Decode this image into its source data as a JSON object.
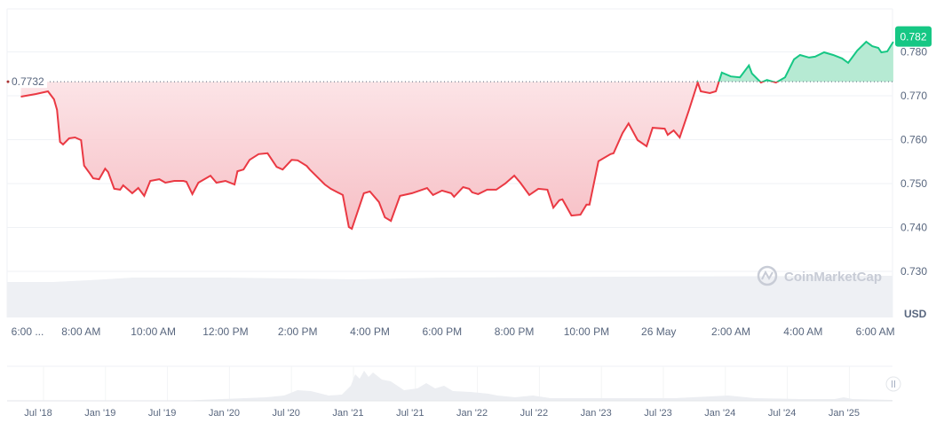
{
  "chart_data": {
    "type": "line",
    "currency_label": "USD",
    "baseline": {
      "value": 0.7732,
      "label": "0.7732"
    },
    "current_price": {
      "value": 0.782,
      "label": "0.782"
    },
    "ylim": [
      0.727,
      0.79
    ],
    "y_ticks": [
      "0.780",
      "0.770",
      "0.760",
      "0.750",
      "0.740",
      "0.730"
    ],
    "x_ticks": [
      "6:00 ...",
      "8:00 AM",
      "10:00 AM",
      "12:00 PM",
      "2:00 PM",
      "4:00 PM",
      "6:00 PM",
      "8:00 PM",
      "10:00 PM",
      "26 May",
      "2:00 AM",
      "4:00 AM",
      "6:00 AM"
    ],
    "grid": true,
    "colors": {
      "up": "#16c784",
      "down": "#ea3943",
      "up_fill": "#b6ead3",
      "down_fill": "#fbd9dc"
    },
    "watermark": "CoinMarketCap",
    "series": [
      {
        "points": [
          [
            "06:20",
            0.7698
          ],
          [
            "06:45",
            0.7704
          ],
          [
            "07:05",
            0.771
          ],
          [
            "07:15",
            0.7692
          ],
          [
            "07:20",
            0.7668
          ],
          [
            "07:25",
            0.7595
          ],
          [
            "07:30",
            0.7589
          ],
          [
            "07:40",
            0.7603
          ],
          [
            "07:50",
            0.7605
          ],
          [
            "08:00",
            0.7599
          ],
          [
            "08:05",
            0.7541
          ],
          [
            "08:15",
            0.7522
          ],
          [
            "08:20",
            0.7512
          ],
          [
            "08:30",
            0.751
          ],
          [
            "08:40",
            0.7534
          ],
          [
            "08:45",
            0.7526
          ],
          [
            "08:55",
            0.7488
          ],
          [
            "09:05",
            0.7486
          ],
          [
            "09:10",
            0.7496
          ],
          [
            "09:20",
            0.7484
          ],
          [
            "09:25",
            0.7478
          ],
          [
            "09:35",
            0.749
          ],
          [
            "09:45",
            0.7472
          ],
          [
            "09:55",
            0.7506
          ],
          [
            "10:10",
            0.751
          ],
          [
            "10:20",
            0.7502
          ],
          [
            "10:35",
            0.7506
          ],
          [
            "10:50",
            0.7506
          ],
          [
            "10:55",
            0.7504
          ],
          [
            "11:05",
            0.7476
          ],
          [
            "11:15",
            0.7502
          ],
          [
            "11:35",
            0.7518
          ],
          [
            "11:45",
            0.7502
          ],
          [
            "12:00",
            0.7506
          ],
          [
            "12:15",
            0.7498
          ],
          [
            "12:20",
            0.7528
          ],
          [
            "12:30",
            0.7532
          ],
          [
            "12:40",
            0.7554
          ],
          [
            "12:55",
            0.7567
          ],
          [
            "13:10",
            0.7569
          ],
          [
            "13:25",
            0.7538
          ],
          [
            "13:35",
            0.7532
          ],
          [
            "13:50",
            0.7554
          ],
          [
            "14:00",
            0.7553
          ],
          [
            "14:15",
            0.754
          ],
          [
            "14:20",
            0.7532
          ],
          [
            "14:45",
            0.7498
          ],
          [
            "14:55",
            0.7488
          ],
          [
            "15:15",
            0.7474
          ],
          [
            "15:25",
            0.7401
          ],
          [
            "15:30",
            0.7397
          ],
          [
            "15:50",
            0.7478
          ],
          [
            "16:00",
            0.7482
          ],
          [
            "16:15",
            0.7458
          ],
          [
            "16:25",
            0.7423
          ],
          [
            "16:35",
            0.7415
          ],
          [
            "16:50",
            0.7472
          ],
          [
            "17:10",
            0.7478
          ],
          [
            "17:35",
            0.749
          ],
          [
            "17:45",
            0.7474
          ],
          [
            "18:00",
            0.7484
          ],
          [
            "18:15",
            0.7478
          ],
          [
            "18:20",
            0.747
          ],
          [
            "18:35",
            0.7492
          ],
          [
            "18:45",
            0.7488
          ],
          [
            "18:50",
            0.748
          ],
          [
            "19:00",
            0.7476
          ],
          [
            "19:15",
            0.7486
          ],
          [
            "19:30",
            0.7486
          ],
          [
            "19:45",
            0.75
          ],
          [
            "20:00",
            0.7518
          ],
          [
            "20:10",
            0.7502
          ],
          [
            "20:25",
            0.7474
          ],
          [
            "20:40",
            0.7488
          ],
          [
            "20:55",
            0.7486
          ],
          [
            "21:05",
            0.7445
          ],
          [
            "21:15",
            0.7462
          ],
          [
            "21:20",
            0.7464
          ],
          [
            "21:35",
            0.7427
          ],
          [
            "21:50",
            0.7429
          ],
          [
            "22:00",
            0.7452
          ],
          [
            "22:05",
            0.7452
          ],
          [
            "22:20",
            0.7551
          ],
          [
            "22:40",
            0.7567
          ],
          [
            "22:45",
            0.7569
          ],
          [
            "23:00",
            0.7615
          ],
          [
            "23:10",
            0.7637
          ],
          [
            "23:25",
            0.7599
          ],
          [
            "23:40",
            0.7585
          ],
          [
            "23:50",
            0.7627
          ],
          [
            "00:10",
            0.7625
          ],
          [
            "00:15",
            0.7611
          ],
          [
            "00:25",
            0.7621
          ],
          [
            "00:35",
            0.7605
          ],
          [
            "00:50",
            0.7666
          ],
          [
            "01:05",
            0.773
          ],
          [
            "01:10",
            0.771
          ],
          [
            "01:25",
            0.7706
          ],
          [
            "01:35",
            0.771
          ],
          [
            "01:45",
            0.7753
          ],
          [
            "02:00",
            0.7744
          ],
          [
            "02:15",
            0.7742
          ],
          [
            "02:30",
            0.7769
          ],
          [
            "02:35",
            0.7751
          ],
          [
            "02:50",
            0.773
          ],
          [
            "03:00",
            0.7736
          ],
          [
            "03:15",
            0.773
          ],
          [
            "03:30",
            0.7742
          ],
          [
            "03:45",
            0.7783
          ],
          [
            "03:55",
            0.7793
          ],
          [
            "04:10",
            0.7787
          ],
          [
            "04:20",
            0.7789
          ],
          [
            "04:35",
            0.7799
          ],
          [
            "04:50",
            0.7793
          ],
          [
            "05:05",
            0.7785
          ],
          [
            "05:15",
            0.7775
          ],
          [
            "05:30",
            0.7803
          ],
          [
            "05:45",
            0.7823
          ],
          [
            "05:55",
            0.7813
          ],
          [
            "06:05",
            0.7809
          ],
          [
            "06:10",
            0.7799
          ],
          [
            "06:20",
            0.7801
          ],
          [
            "06:30",
            0.7823
          ]
        ]
      }
    ]
  },
  "navigator": {
    "x_ticks": [
      "Jul '18",
      "Jan '19",
      "Jul '19",
      "Jan '20",
      "Jul '20",
      "Jan '21",
      "Jul '21",
      "Jan '22",
      "Jul '22",
      "Jan '23",
      "Jul '23",
      "Jan '24",
      "Jul '24",
      "Jan '25"
    ]
  }
}
